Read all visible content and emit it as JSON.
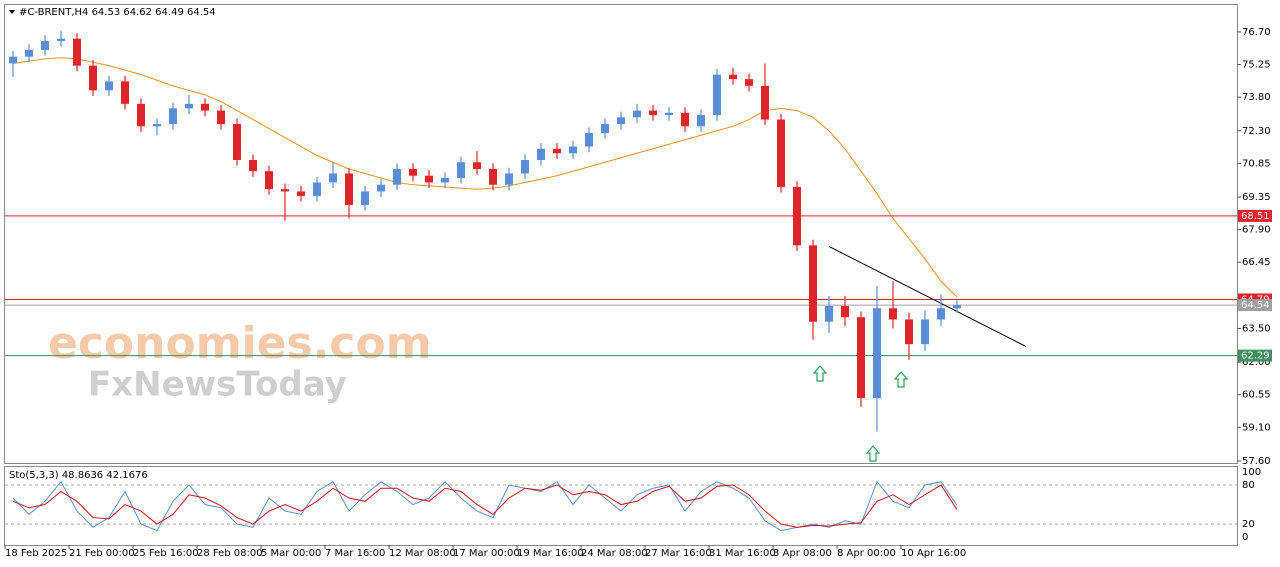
{
  "chart_data": {
    "type": "candlestick",
    "title": "#C-BRENT,H4  64.53 64.62 64.49 64.54",
    "categories": [
      "18 Feb 2025",
      null,
      null,
      null,
      "21 Feb 00:00",
      null,
      null,
      null,
      "25 Feb 16:00",
      null,
      null,
      null,
      "28 Feb 08:00",
      null,
      null,
      null,
      "5 Mar 00:00",
      null,
      null,
      null,
      "7 Mar 16:00",
      null,
      null,
      null,
      "12 Mar 08:00",
      null,
      null,
      null,
      "17 Mar 00:00",
      null,
      null,
      null,
      "19 Mar 16:00",
      null,
      null,
      null,
      "24 Mar 08:00",
      null,
      null,
      null,
      "27 Mar 16:00",
      null,
      null,
      null,
      "31 Mar 16:00",
      null,
      null,
      null,
      "3 Apr 08:00",
      null,
      null,
      null,
      "8 Apr 00:00",
      null,
      null,
      null,
      "10 Apr 16:00",
      null,
      null,
      null
    ],
    "open": [
      75.3,
      75.6,
      75.9,
      76.3,
      76.4,
      75.2,
      74.1,
      74.5,
      73.5,
      72.5,
      72.6,
      73.3,
      73.5,
      73.2,
      72.6,
      71.0,
      70.5,
      69.7,
      69.6,
      69.4,
      70.0,
      70.4,
      69.0,
      69.6,
      69.9,
      70.6,
      70.3,
      70.0,
      70.2,
      70.9,
      70.6,
      69.9,
      70.4,
      71.0,
      71.5,
      71.3,
      71.6,
      72.2,
      72.6,
      72.9,
      73.2,
      73.0,
      73.1,
      72.5,
      73.0,
      74.8,
      74.6,
      74.3,
      72.8,
      69.8,
      67.2,
      63.8,
      64.5,
      64.0,
      60.4,
      64.4,
      63.9,
      62.8,
      63.9,
      64.4
    ],
    "high": [
      75.85,
      76.15,
      76.55,
      76.75,
      76.65,
      75.45,
      74.75,
      74.75,
      73.75,
      72.85,
      73.55,
      73.9,
      73.75,
      73.45,
      72.85,
      71.25,
      70.75,
      69.95,
      69.85,
      70.25,
      70.9,
      70.65,
      69.85,
      70.15,
      70.85,
      70.85,
      70.55,
      70.45,
      71.15,
      71.4,
      70.85,
      70.65,
      71.25,
      71.75,
      71.75,
      71.85,
      72.45,
      72.85,
      73.15,
      73.5,
      73.45,
      73.35,
      73.35,
      73.25,
      75.05,
      75.1,
      74.85,
      75.3,
      73.05,
      70.05,
      67.45,
      64.95,
      64.95,
      64.25,
      65.4,
      65.6,
      64.2,
      64.3,
      65.0,
      64.75
    ],
    "low": [
      74.7,
      75.35,
      75.65,
      76.05,
      74.95,
      73.85,
      73.85,
      73.25,
      72.25,
      72.1,
      72.35,
      73.05,
      72.95,
      72.35,
      70.75,
      70.25,
      69.45,
      68.3,
      69.15,
      69.15,
      69.75,
      68.4,
      68.75,
      69.35,
      69.65,
      70.05,
      69.75,
      69.75,
      69.95,
      70.35,
      69.65,
      69.65,
      70.15,
      70.75,
      71.05,
      71.05,
      71.35,
      71.95,
      72.35,
      72.65,
      72.75,
      72.75,
      72.25,
      72.25,
      72.75,
      74.35,
      74.05,
      72.55,
      69.55,
      66.95,
      63.0,
      63.3,
      63.6,
      60.0,
      58.9,
      63.5,
      62.1,
      62.5,
      63.6,
      64.2
    ],
    "close": [
      75.6,
      75.9,
      76.3,
      76.4,
      75.2,
      74.1,
      74.5,
      73.5,
      72.5,
      72.6,
      73.3,
      73.5,
      73.2,
      72.6,
      71.0,
      70.5,
      69.7,
      69.6,
      69.4,
      70.0,
      70.4,
      69.0,
      69.6,
      69.9,
      70.6,
      70.3,
      70.0,
      70.2,
      70.9,
      70.6,
      69.9,
      70.4,
      71.0,
      71.5,
      71.3,
      71.6,
      72.2,
      72.6,
      72.9,
      73.2,
      73.0,
      73.1,
      72.5,
      73.0,
      74.8,
      74.6,
      74.3,
      72.8,
      69.8,
      67.2,
      63.8,
      64.5,
      64.0,
      60.4,
      64.4,
      63.9,
      62.8,
      63.9,
      64.4,
      64.54
    ],
    "up_color": "#5b8dd6",
    "down_color": "#e0242b",
    "moving_average": {
      "color": "#f0921e",
      "values": [
        75.3,
        75.4,
        75.5,
        75.55,
        75.5,
        75.35,
        75.2,
        75.0,
        74.8,
        74.55,
        74.3,
        74.1,
        73.9,
        73.6,
        73.2,
        72.8,
        72.4,
        72.0,
        71.6,
        71.2,
        70.9,
        70.6,
        70.4,
        70.2,
        70.0,
        69.9,
        69.85,
        69.8,
        69.75,
        69.7,
        69.75,
        69.85,
        70.0,
        70.15,
        70.3,
        70.5,
        70.7,
        70.9,
        71.1,
        71.3,
        71.5,
        71.7,
        71.9,
        72.1,
        72.3,
        72.5,
        72.8,
        73.2,
        73.3,
        73.2,
        72.9,
        72.3,
        71.5,
        70.5,
        69.5,
        68.4,
        67.5,
        66.6,
        65.6,
        64.9
      ]
    },
    "levels": [
      {
        "value": 68.51,
        "color": "#e0242b"
      },
      {
        "value": 64.79,
        "color": "#e0242b"
      },
      {
        "value": 64.54,
        "color": "#a0a0a0"
      },
      {
        "value": 62.29,
        "color": "#3f8f5f"
      }
    ],
    "trendline": {
      "x": [
        51,
        63.3
      ],
      "y": [
        67.15,
        62.7
      ],
      "color": "#000000"
    },
    "ylim": [
      57.51,
      77.9
    ],
    "yticks": [
      {
        "value": 76.7,
        "label": "76.70"
      },
      75.25,
      {
        "value": 73.8,
        "label": "73.80"
      },
      {
        "value": 72.3,
        "label": "72.30"
      },
      70.85,
      69.35,
      {
        "value": 67.9,
        "label": "67.90"
      },
      66.45,
      {
        "value": 63.5,
        "label": "63.50"
      },
      {
        "value": 62.0,
        "label": "62.00"
      },
      60.55,
      {
        "value": 59.1,
        "label": "59.10"
      },
      {
        "value": 57.6,
        "label": "57.60"
      }
    ],
    "watermark": [
      "economies.com",
      "FxNewsToday"
    ],
    "stochastic": {
      "type": "line",
      "title": "Sto(5,3,3) 48.8636 42.1676",
      "ylim": [
        -12.1,
        107.6
      ],
      "yticks": [
        0,
        20,
        80,
        100
      ],
      "series": [
        {
          "color": "#5b8dd6",
          "values": [
            60,
            35,
            55,
            85,
            40,
            15,
            30,
            70,
            20,
            10,
            55,
            80,
            50,
            45,
            20,
            15,
            60,
            40,
            35,
            70,
            85,
            40,
            65,
            85,
            70,
            50,
            60,
            85,
            60,
            40,
            30,
            80,
            75,
            70,
            85,
            50,
            80,
            60,
            40,
            65,
            75,
            80,
            40,
            70,
            85,
            75,
            60,
            25,
            10,
            15,
            20,
            15,
            25,
            20,
            85,
            55,
            45,
            80,
            85,
            48.8636
          ]
        },
        {
          "color": "#d0101c",
          "values": [
            55,
            45,
            50,
            70,
            55,
            30,
            28,
            50,
            40,
            20,
            35,
            65,
            60,
            48,
            30,
            20,
            40,
            50,
            40,
            55,
            75,
            60,
            55,
            75,
            75,
            60,
            55,
            75,
            70,
            50,
            35,
            60,
            75,
            72,
            80,
            65,
            70,
            65,
            50,
            55,
            70,
            78,
            55,
            60,
            78,
            80,
            65,
            40,
            20,
            15,
            18,
            17,
            20,
            22,
            55,
            65,
            50,
            65,
            80,
            42.1676
          ]
        }
      ]
    }
  }
}
